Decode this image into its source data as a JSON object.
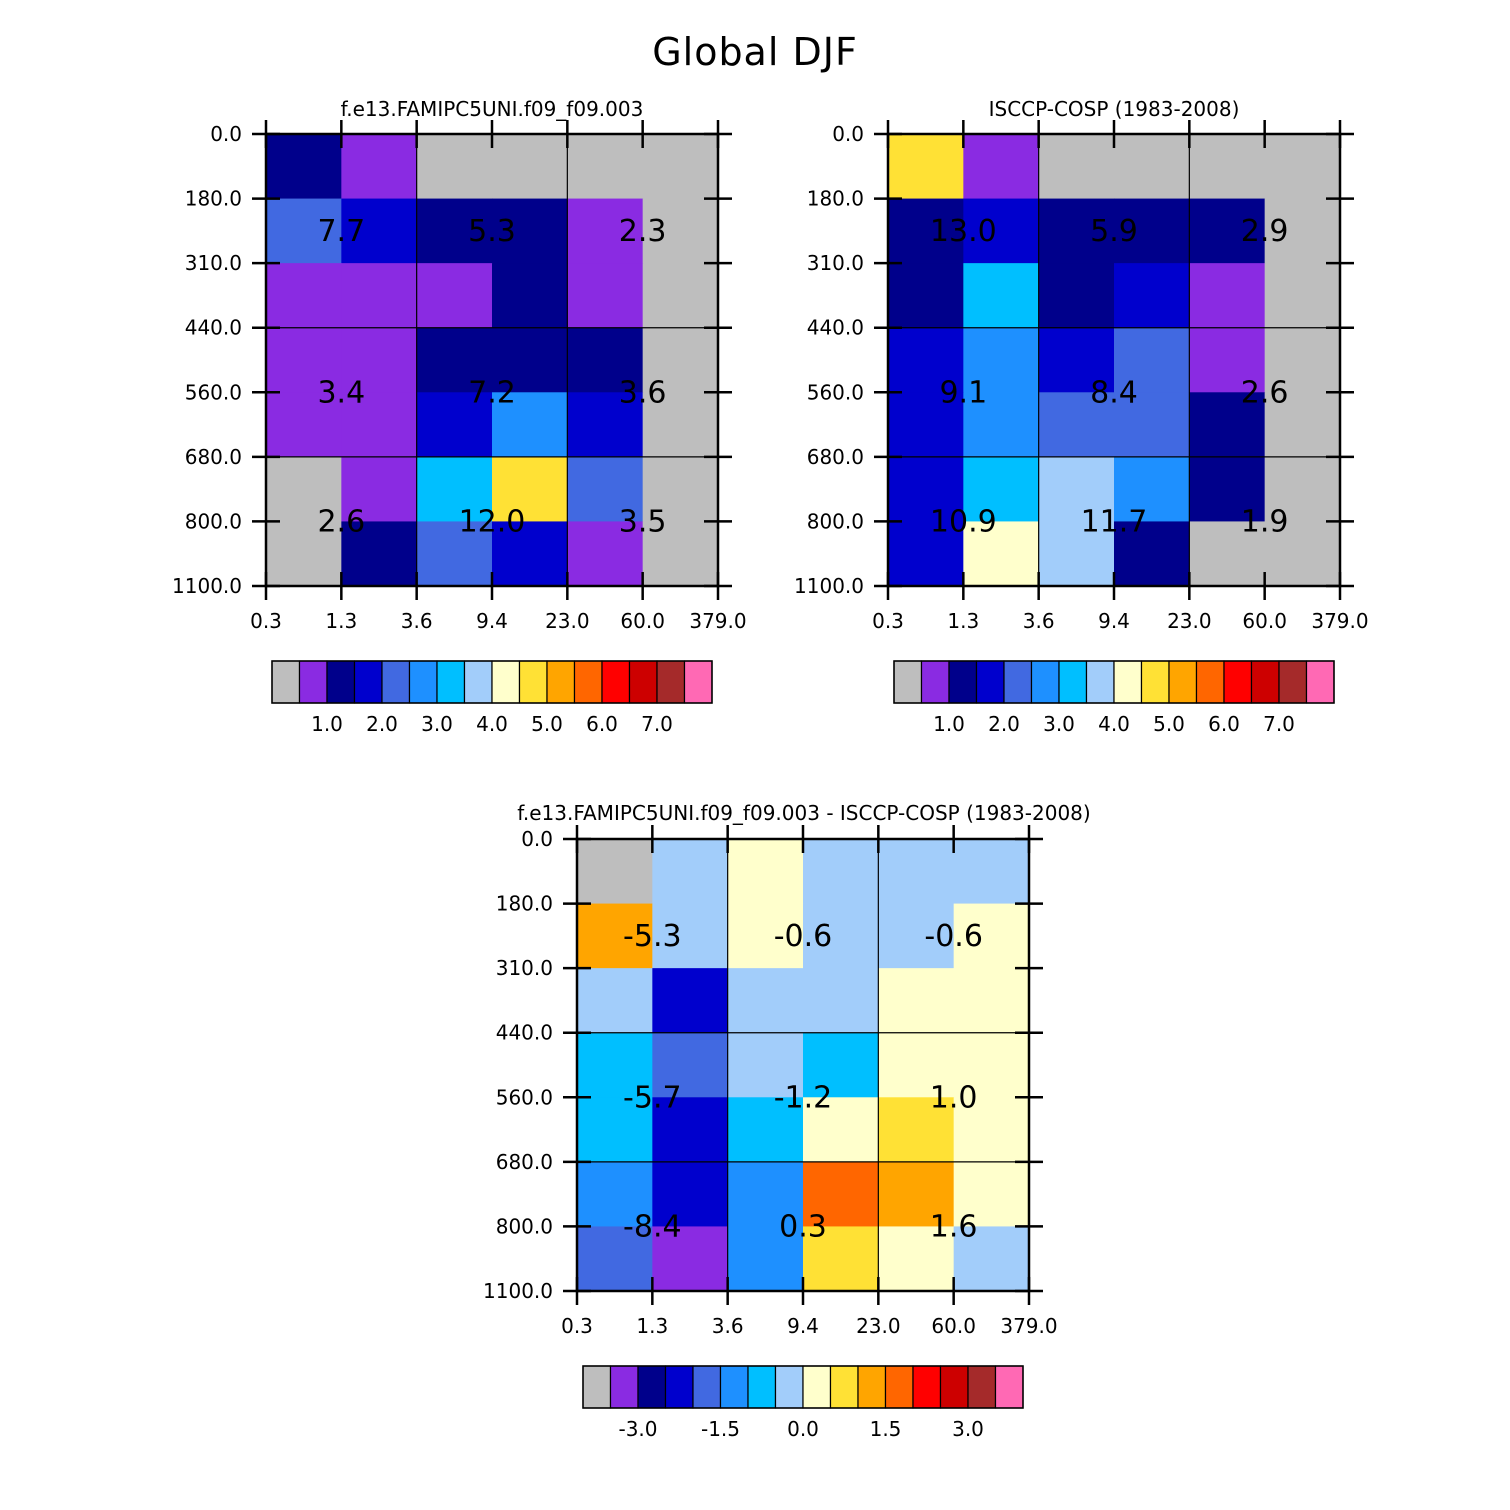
{
  "title": "Global DJF",
  "colors": [
    "#bebebe",
    "#8a2be2",
    "#00008b",
    "#0000cd",
    "#4169e1",
    "#1e90ff",
    "#00bfff",
    "#a2cdfa",
    "#ffffcc",
    "#ffe135",
    "#ffa500",
    "#ff6600",
    "#ff0000",
    "#cd0000",
    "#a52a2a",
    "#ff69b4"
  ],
  "tau_labels": [
    "0.3",
    "1.3",
    "3.6",
    "9.4",
    "23.0",
    "60.0",
    "379.0"
  ],
  "pressure_labels": [
    "0.0",
    "180.0",
    "310.0",
    "440.0",
    "560.0",
    "680.0",
    "800.0",
    "1100.0"
  ],
  "panels": [
    {
      "title": "f.e13.FAMIPC5UNI.f09_f09.003",
      "colorbar_labels": [
        "1.0",
        "2.0",
        "3.0",
        "4.0",
        "5.0",
        "6.0",
        "7.0"
      ],
      "chart_data": {
        "type": "heatmap",
        "x": "tau bins (columns)",
        "color_index_grid": [
          [
            2,
            1,
            0,
            0,
            0,
            0
          ],
          [
            4,
            3,
            2,
            2,
            1,
            0
          ],
          [
            1,
            1,
            1,
            2,
            1,
            0
          ],
          [
            1,
            1,
            2,
            2,
            2,
            0
          ],
          [
            1,
            1,
            3,
            5,
            3,
            0
          ],
          [
            0,
            1,
            6,
            9,
            4,
            0
          ],
          [
            0,
            2,
            4,
            3,
            1,
            0
          ]
        ],
        "block_totals": [
          {
            "block": [
              0,
              0
            ],
            "value": "7.7"
          },
          {
            "block": [
              0,
              1
            ],
            "value": "5.3"
          },
          {
            "block": [
              0,
              2
            ],
            "value": "2.3"
          },
          {
            "block": [
              1,
              0
            ],
            "value": "3.4"
          },
          {
            "block": [
              1,
              1
            ],
            "value": "7.2"
          },
          {
            "block": [
              1,
              2
            ],
            "value": "3.6"
          },
          {
            "block": [
              2,
              0
            ],
            "value": "2.6"
          },
          {
            "block": [
              2,
              1
            ],
            "value": "12.0"
          },
          {
            "block": [
              2,
              2
            ],
            "value": "3.5"
          }
        ]
      }
    },
    {
      "title": "ISCCP-COSP (1983-2008)",
      "colorbar_labels": [
        "1.0",
        "2.0",
        "3.0",
        "4.0",
        "5.0",
        "6.0",
        "7.0"
      ],
      "chart_data": {
        "type": "heatmap",
        "color_index_grid": [
          [
            9,
            1,
            0,
            0,
            0,
            0
          ],
          [
            2,
            3,
            2,
            2,
            2,
            0
          ],
          [
            2,
            6,
            2,
            3,
            1,
            0
          ],
          [
            3,
            5,
            3,
            4,
            1,
            0
          ],
          [
            3,
            5,
            4,
            4,
            2,
            0
          ],
          [
            3,
            6,
            7,
            5,
            2,
            0
          ],
          [
            3,
            8,
            7,
            2,
            0,
            0
          ]
        ],
        "block_totals": [
          {
            "block": [
              0,
              0
            ],
            "value": "13.0"
          },
          {
            "block": [
              0,
              1
            ],
            "value": "5.9"
          },
          {
            "block": [
              0,
              2
            ],
            "value": "2.9"
          },
          {
            "block": [
              1,
              0
            ],
            "value": "9.1"
          },
          {
            "block": [
              1,
              1
            ],
            "value": "8.4"
          },
          {
            "block": [
              1,
              2
            ],
            "value": "2.6"
          },
          {
            "block": [
              2,
              0
            ],
            "value": "10.9"
          },
          {
            "block": [
              2,
              1
            ],
            "value": "11.7"
          },
          {
            "block": [
              2,
              2
            ],
            "value": "1.9"
          }
        ]
      }
    },
    {
      "title": "f.e13.FAMIPC5UNI.f09_f09.003 - ISCCP-COSP (1983-2008)",
      "colorbar_labels": [
        "-3.0",
        "-1.5",
        "0.0",
        "1.5",
        "3.0"
      ],
      "chart_data": {
        "type": "heatmap",
        "color_index_grid": [
          [
            0,
            7,
            8,
            7,
            7,
            7
          ],
          [
            10,
            7,
            8,
            7,
            7,
            8
          ],
          [
            7,
            3,
            7,
            7,
            8,
            8
          ],
          [
            6,
            4,
            7,
            6,
            8,
            8
          ],
          [
            6,
            3,
            6,
            8,
            9,
            8
          ],
          [
            5,
            3,
            5,
            11,
            10,
            8
          ],
          [
            4,
            1,
            5,
            9,
            8,
            7
          ]
        ],
        "block_totals": [
          {
            "block": [
              0,
              0
            ],
            "value": "-5.3"
          },
          {
            "block": [
              0,
              1
            ],
            "value": "-0.6"
          },
          {
            "block": [
              0,
              2
            ],
            "value": "-0.6"
          },
          {
            "block": [
              1,
              0
            ],
            "value": "-5.7"
          },
          {
            "block": [
              1,
              1
            ],
            "value": "-1.2"
          },
          {
            "block": [
              1,
              2
            ],
            "value": "1.0"
          },
          {
            "block": [
              2,
              0
            ],
            "value": "-8.4"
          },
          {
            "block": [
              2,
              1
            ],
            "value": "0.3"
          },
          {
            "block": [
              2,
              2
            ],
            "value": "1.6"
          }
        ]
      }
    }
  ]
}
